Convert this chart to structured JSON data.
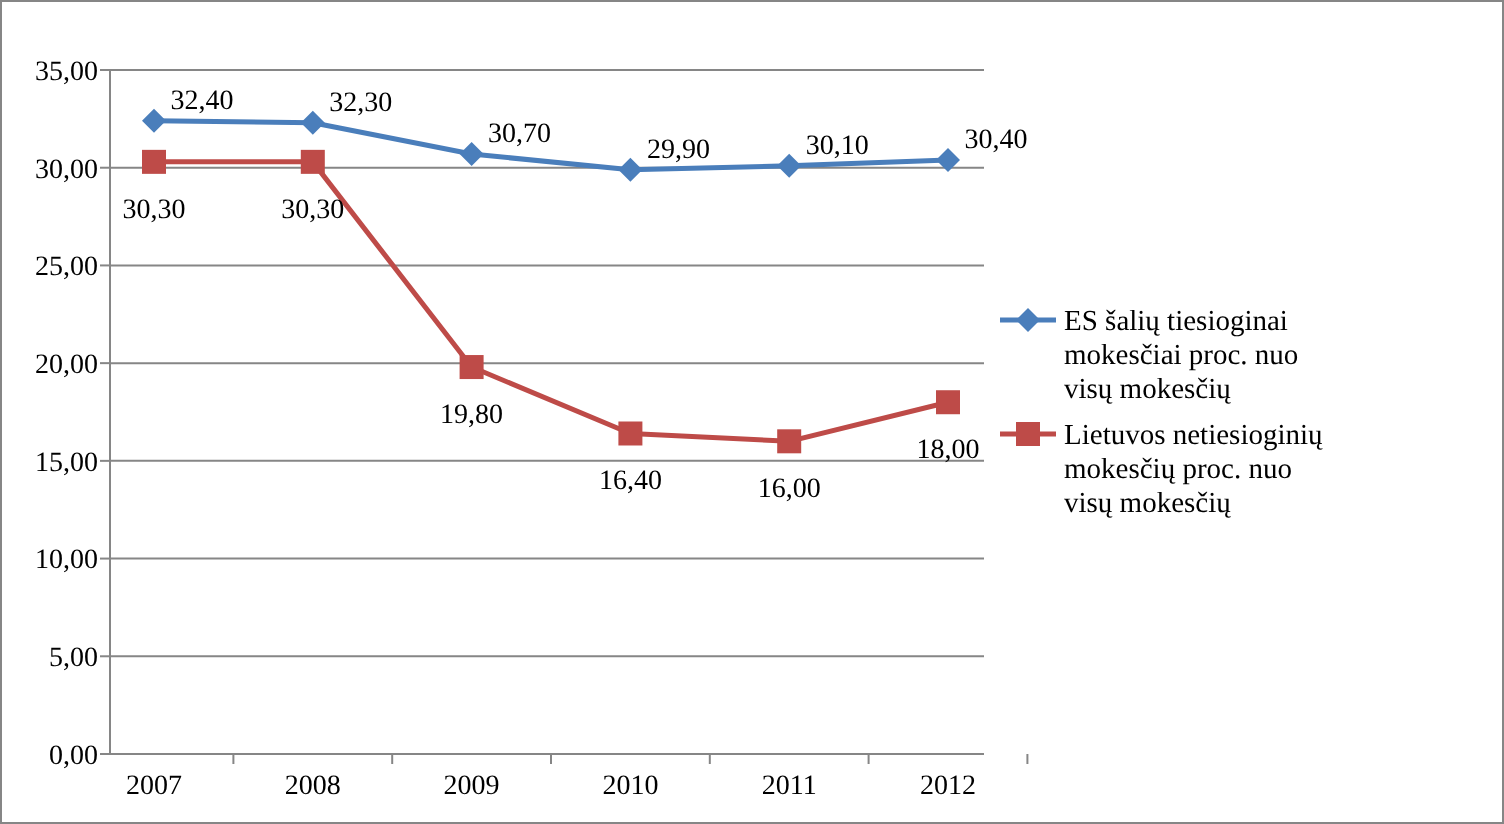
{
  "chart_data": {
    "type": "line",
    "categories": [
      "2007",
      "2008",
      "2009",
      "2010",
      "2011",
      "2012"
    ],
    "series": [
      {
        "name": "ES šalių tiesioginai mokesčiai proc.  nuo visų mokesčių",
        "color": "#4a7ebb",
        "marker": "diamond",
        "values": [
          32.4,
          32.3,
          30.7,
          29.9,
          30.1,
          30.4
        ],
        "value_labels": [
          "32,40",
          "32,30",
          "30,70",
          "29,90",
          "30,10",
          "30,40"
        ]
      },
      {
        "name": "Lietuvos netiesioginių mokesčių proc. nuo visų mokesčių",
        "color": "#be4b48",
        "marker": "square",
        "values": [
          30.3,
          30.3,
          19.8,
          16.4,
          16.0,
          18.0
        ],
        "value_labels": [
          "30,30",
          "30,30",
          "19,80",
          "16,40",
          "16,00",
          "18,00"
        ]
      }
    ],
    "ylim": [
      0,
      35
    ],
    "yticks": [
      {
        "value": 0,
        "label": "0,00"
      },
      {
        "value": 5,
        "label": "5,00"
      },
      {
        "value": 10,
        "label": "10,00"
      },
      {
        "value": 15,
        "label": "15,00"
      },
      {
        "value": 20,
        "label": "20,00"
      },
      {
        "value": 25,
        "label": "25,00"
      },
      {
        "value": 30,
        "label": "30,00"
      },
      {
        "value": 35,
        "label": "35,00"
      }
    ],
    "grid": "y",
    "legend": "right",
    "line_style": "solid"
  }
}
